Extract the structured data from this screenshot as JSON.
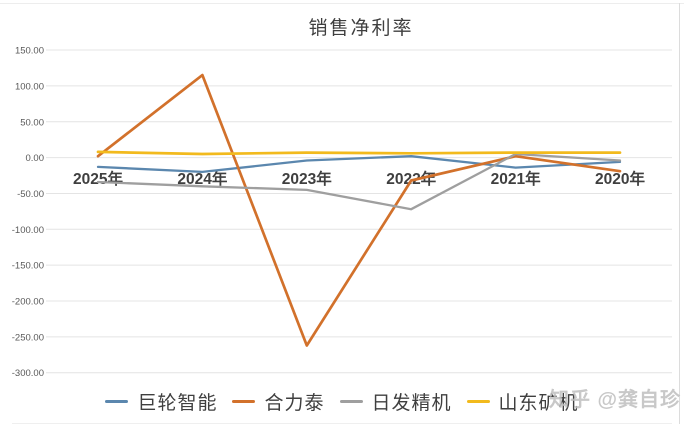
{
  "chart_data": {
    "type": "line",
    "title": "销售净利率",
    "categories": [
      "2025年",
      "2024年",
      "2023年",
      "2022年",
      "2021年",
      "2020年"
    ],
    "series": [
      {
        "name": "巨轮智能",
        "color": "#5b87ae",
        "values": [
          -13,
          -20,
          -4,
          2,
          -14,
          -6
        ]
      },
      {
        "name": "合力泰",
        "color": "#d2712b",
        "values": [
          2,
          115,
          -262,
          -32,
          2,
          -19
        ]
      },
      {
        "name": "日发精机",
        "color": "#9f9f9f",
        "values": [
          -34,
          -40,
          -45,
          -72,
          5,
          -4
        ]
      },
      {
        "name": "山东矿机",
        "color": "#f2ba1d",
        "values": [
          8,
          5,
          7,
          6,
          7,
          7
        ]
      }
    ],
    "ylim": [
      -300,
      150
    ],
    "ytick_step": 50,
    "y_ticks": [
      "150.00",
      "100.00",
      "50.00",
      "0.00",
      "-50.00",
      "-100.00",
      "-150.00",
      "-200.00",
      "-250.00",
      "-300.00"
    ],
    "grid": true,
    "legend_position": "bottom"
  },
  "watermark": {
    "text": "知乎 @龚自珍"
  },
  "colors": {
    "grid_line": "#e4e4e4",
    "y_tick_label": "#595959",
    "x_tick_label": "#3f3f3f",
    "title": "#3f3f3f",
    "legend_label": "#3f3f3f",
    "watermark": "#bebebe",
    "border": "#dcdcdc",
    "background": "#ffffff"
  }
}
